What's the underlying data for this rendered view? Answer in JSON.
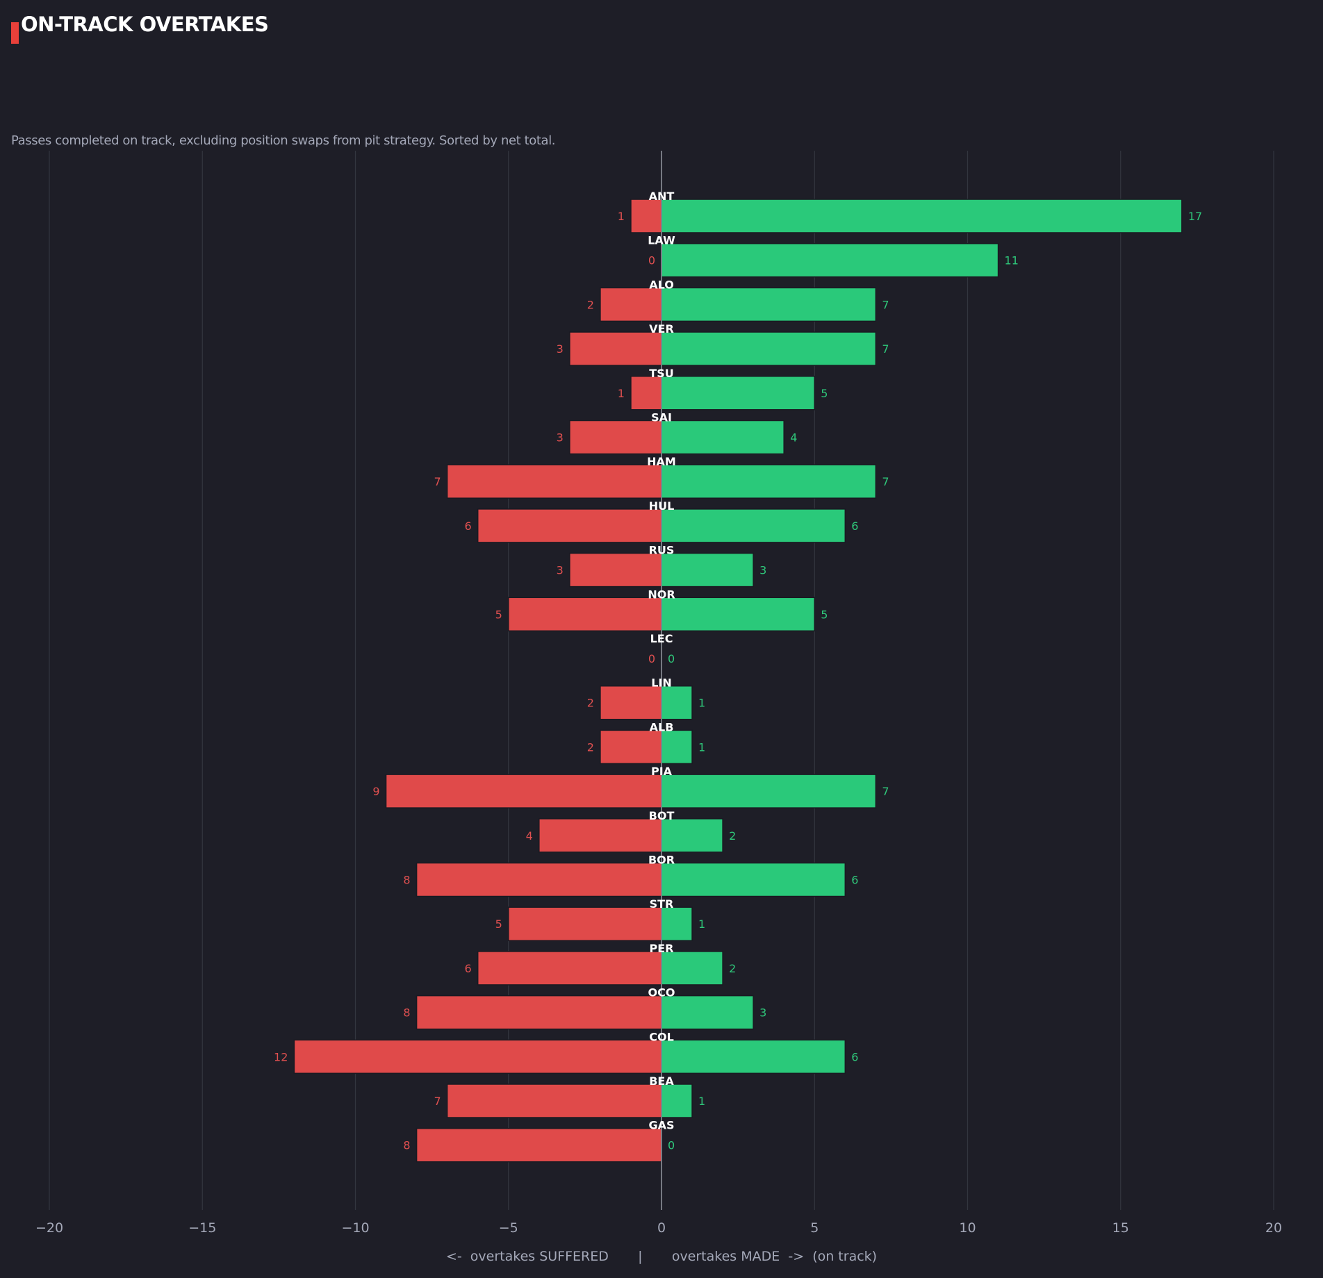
{
  "chart_data": {
    "type": "bar",
    "orientation": "horizontal-diverging",
    "title": "ON-TRACK OVERTAKES",
    "subtitle": "Passes completed on track, excluding position swaps from pit strategy. Sorted by net total.",
    "xlabel": "<-  overtakes SUFFERED       |       overtakes MADE  ->  (on track)",
    "xlim": [
      -20,
      20
    ],
    "xticks": [
      -20,
      -15,
      -10,
      -5,
      0,
      5,
      10,
      15,
      20
    ],
    "xtick_labels": [
      "−20",
      "−15",
      "−10",
      "−5",
      "0",
      "5",
      "10",
      "15",
      "20"
    ],
    "grid": "vertical",
    "categories": [
      "ANT",
      "LAW",
      "ALO",
      "VER",
      "TSU",
      "SAI",
      "HAM",
      "HUL",
      "RUS",
      "NOR",
      "LEC",
      "LIN",
      "ALB",
      "PIA",
      "BOT",
      "BOR",
      "STR",
      "PER",
      "OCO",
      "COL",
      "BEA",
      "GAS"
    ],
    "series": [
      {
        "name": "overtakes SUFFERED",
        "color": "#e04a4a",
        "values": [
          1,
          0,
          2,
          3,
          1,
          3,
          7,
          6,
          3,
          5,
          0,
          2,
          2,
          9,
          4,
          8,
          5,
          6,
          8,
          12,
          7,
          8
        ]
      },
      {
        "name": "overtakes MADE",
        "color": "#2ac97a",
        "values": [
          17,
          11,
          7,
          7,
          5,
          4,
          7,
          6,
          3,
          5,
          0,
          1,
          1,
          7,
          2,
          6,
          1,
          2,
          3,
          6,
          1,
          0
        ]
      }
    ]
  },
  "colors": {
    "background": "#1e1e27",
    "accent": "#e8403a",
    "suffered": "#e04a4a",
    "made": "#2ac97a",
    "grid": "#33363f",
    "zero_line": "#8d909a"
  }
}
